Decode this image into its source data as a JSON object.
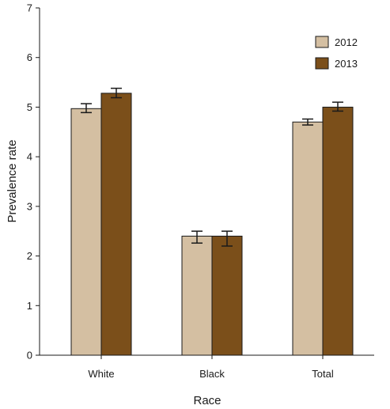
{
  "chart_data": {
    "type": "bar",
    "categories": [
      "White",
      "Black",
      "Total"
    ],
    "series": [
      {
        "name": "2012",
        "color": "#d4bfa2",
        "values": [
          4.97,
          2.4,
          4.7
        ],
        "error_low": [
          4.89,
          2.26,
          4.64
        ],
        "error_high": [
          5.07,
          2.5,
          4.76
        ]
      },
      {
        "name": "2013",
        "color": "#7b4f1a",
        "values": [
          5.28,
          2.4,
          5.0
        ],
        "error_low": [
          5.19,
          2.2,
          4.92
        ],
        "error_high": [
          5.38,
          2.5,
          5.1
        ]
      }
    ],
    "xlabel": "Race",
    "ylabel": "Prevalence rate",
    "ylim": [
      0,
      7
    ],
    "yticks": [
      "0",
      "1",
      "2",
      "3",
      "4",
      "5",
      "6",
      "7"
    ],
    "grid": false,
    "legend_position": "top-right"
  }
}
